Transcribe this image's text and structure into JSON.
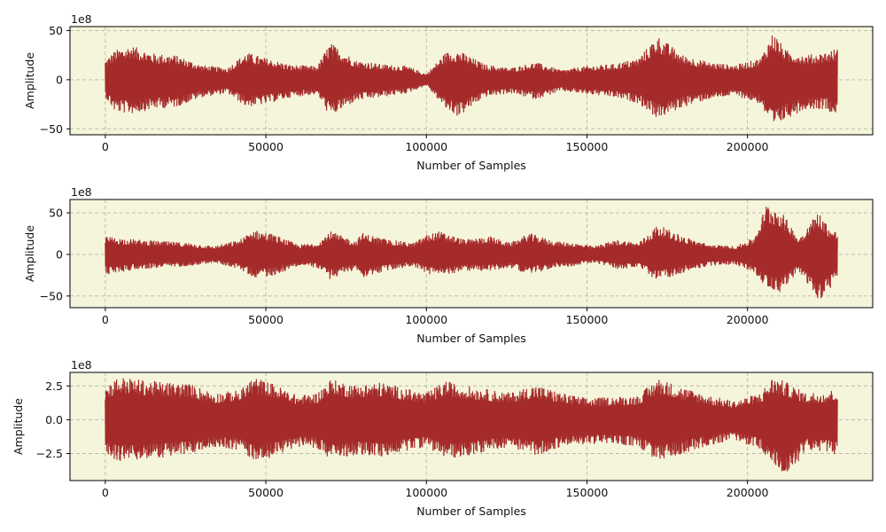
{
  "chart_data": [
    {
      "type": "line",
      "xlabel": "Number of Samples",
      "ylabel": "Amplitude",
      "offset_text": "1e8",
      "y_unit_scale": 100000000,
      "xlim": [
        -11000,
        239000
      ],
      "ylim": [
        -56,
        54
      ],
      "xticks": [
        0,
        50000,
        100000,
        150000,
        200000
      ],
      "xtick_labels": [
        "0",
        "50000",
        "100000",
        "150000",
        "200000"
      ],
      "yticks": [
        -50,
        0,
        50
      ],
      "ytick_labels": [
        "−50",
        "0",
        "50"
      ],
      "grid": true,
      "line_color": "#a52a2a",
      "background_color": "#f5f5dc",
      "num_samples": 228000,
      "envelope": {
        "x": [
          0,
          3000,
          8000,
          15000,
          22000,
          30000,
          38000,
          44000,
          50000,
          58000,
          66000,
          70000,
          78000,
          86000,
          94000,
          100000,
          106000,
          110000,
          118000,
          126000,
          134000,
          142000,
          150000,
          158000,
          166000,
          172000,
          180000,
          188000,
          196000,
          204000,
          208000,
          212000,
          218000,
          224000,
          228000
        ],
        "upper": [
          20,
          30,
          35,
          27,
          25,
          15,
          12,
          28,
          22,
          15,
          14,
          38,
          20,
          16,
          14,
          6,
          28,
          30,
          16,
          12,
          18,
          10,
          14,
          16,
          22,
          45,
          25,
          18,
          15,
          22,
          49,
          30,
          25,
          28,
          32
        ],
        "lower": [
          -18,
          -33,
          -35,
          -30,
          -28,
          -18,
          -14,
          -28,
          -25,
          -18,
          -15,
          -38,
          -22,
          -18,
          -14,
          -6,
          -30,
          -38,
          -18,
          -14,
          -20,
          -12,
          -15,
          -18,
          -24,
          -40,
          -28,
          -20,
          -16,
          -25,
          -52,
          -40,
          -30,
          -30,
          -36
        ]
      }
    },
    {
      "type": "line",
      "xlabel": "Number of Samples",
      "ylabel": "Amplitude",
      "offset_text": "1e8",
      "y_unit_scale": 100000000,
      "xlim": [
        -11000,
        239000
      ],
      "ylim": [
        -64,
        66
      ],
      "xticks": [
        0,
        50000,
        100000,
        150000,
        200000
      ],
      "xtick_labels": [
        "0",
        "50000",
        "100000",
        "150000",
        "200000"
      ],
      "yticks": [
        -50,
        0,
        50
      ],
      "ytick_labels": [
        "−50",
        "0",
        "50"
      ],
      "grid": true,
      "line_color": "#a52a2a",
      "background_color": "#f5f5dc",
      "num_samples": 228000,
      "envelope": {
        "x": [
          0,
          4000,
          10000,
          18000,
          26000,
          34000,
          42000,
          46000,
          52000,
          60000,
          66000,
          70000,
          78000,
          80000,
          88000,
          96000,
          100000,
          104000,
          112000,
          120000,
          126000,
          132000,
          140000,
          146000,
          152000,
          160000,
          166000,
          172000,
          180000,
          188000,
          196000,
          202000,
          206000,
          210000,
          216000,
          222000,
          226000,
          228000
        ],
        "upper": [
          22,
          20,
          18,
          16,
          14,
          10,
          18,
          30,
          25,
          12,
          14,
          28,
          16,
          26,
          18,
          14,
          24,
          28,
          18,
          22,
          14,
          26,
          16,
          14,
          10,
          18,
          14,
          36,
          22,
          12,
          10,
          20,
          62,
          55,
          20,
          52,
          30,
          28
        ],
        "lower": [
          -25,
          -22,
          -18,
          -16,
          -14,
          -10,
          -18,
          -28,
          -26,
          -14,
          -16,
          -30,
          -18,
          -28,
          -20,
          -14,
          -24,
          -26,
          -20,
          -20,
          -16,
          -24,
          -16,
          -14,
          -10,
          -18,
          -16,
          -32,
          -22,
          -14,
          -12,
          -22,
          -40,
          -46,
          -20,
          -58,
          -40,
          -30
        ]
      }
    },
    {
      "type": "line",
      "xlabel": "Number of Samples",
      "ylabel": "Amplitude",
      "offset_text": "1e8",
      "y_unit_scale": 100000000,
      "xlim": [
        -11000,
        239000
      ],
      "ylim": [
        -4.5,
        3.5
      ],
      "xticks": [
        0,
        50000,
        100000,
        150000,
        200000
      ],
      "xtick_labels": [
        "0",
        "50000",
        "100000",
        "150000",
        "200000"
      ],
      "yticks": [
        -2.5,
        0,
        2.5
      ],
      "ytick_labels": [
        "−2.5",
        "0.0",
        "2.5"
      ],
      "grid": true,
      "line_color": "#a52a2a",
      "background_color": "#f5f5dc",
      "num_samples": 228000,
      "envelope": {
        "x": [
          0,
          4000,
          10000,
          18000,
          26000,
          34000,
          42000,
          46000,
          52000,
          60000,
          66000,
          70000,
          78000,
          86000,
          94000,
          100000,
          106000,
          110000,
          118000,
          126000,
          134000,
          142000,
          150000,
          158000,
          166000,
          172000,
          180000,
          188000,
          196000,
          204000,
          208000,
          212000,
          218000,
          224000,
          228000
        ],
        "upper": [
          2.5,
          3.2,
          3.0,
          2.8,
          2.7,
          2.0,
          2.2,
          3.2,
          2.7,
          1.8,
          2.0,
          3.0,
          2.6,
          2.8,
          2.3,
          2.0,
          2.9,
          2.6,
          2.3,
          2.0,
          2.6,
          2.0,
          1.6,
          1.7,
          1.8,
          3.1,
          2.4,
          1.8,
          1.4,
          2.0,
          3.2,
          2.8,
          2.0,
          2.1,
          2.3
        ],
        "lower": [
          -2.5,
          -3.1,
          -3.0,
          -2.8,
          -2.6,
          -2.0,
          -2.3,
          -3.0,
          -2.8,
          -2.0,
          -2.1,
          -3.0,
          -2.6,
          -2.8,
          -2.3,
          -2.0,
          -2.9,
          -2.8,
          -2.4,
          -2.0,
          -2.7,
          -2.0,
          -1.8,
          -1.8,
          -2.0,
          -3.1,
          -2.5,
          -1.9,
          -1.5,
          -2.2,
          -3.3,
          -4.5,
          -2.3,
          -2.4,
          -2.6
        ]
      }
    }
  ]
}
